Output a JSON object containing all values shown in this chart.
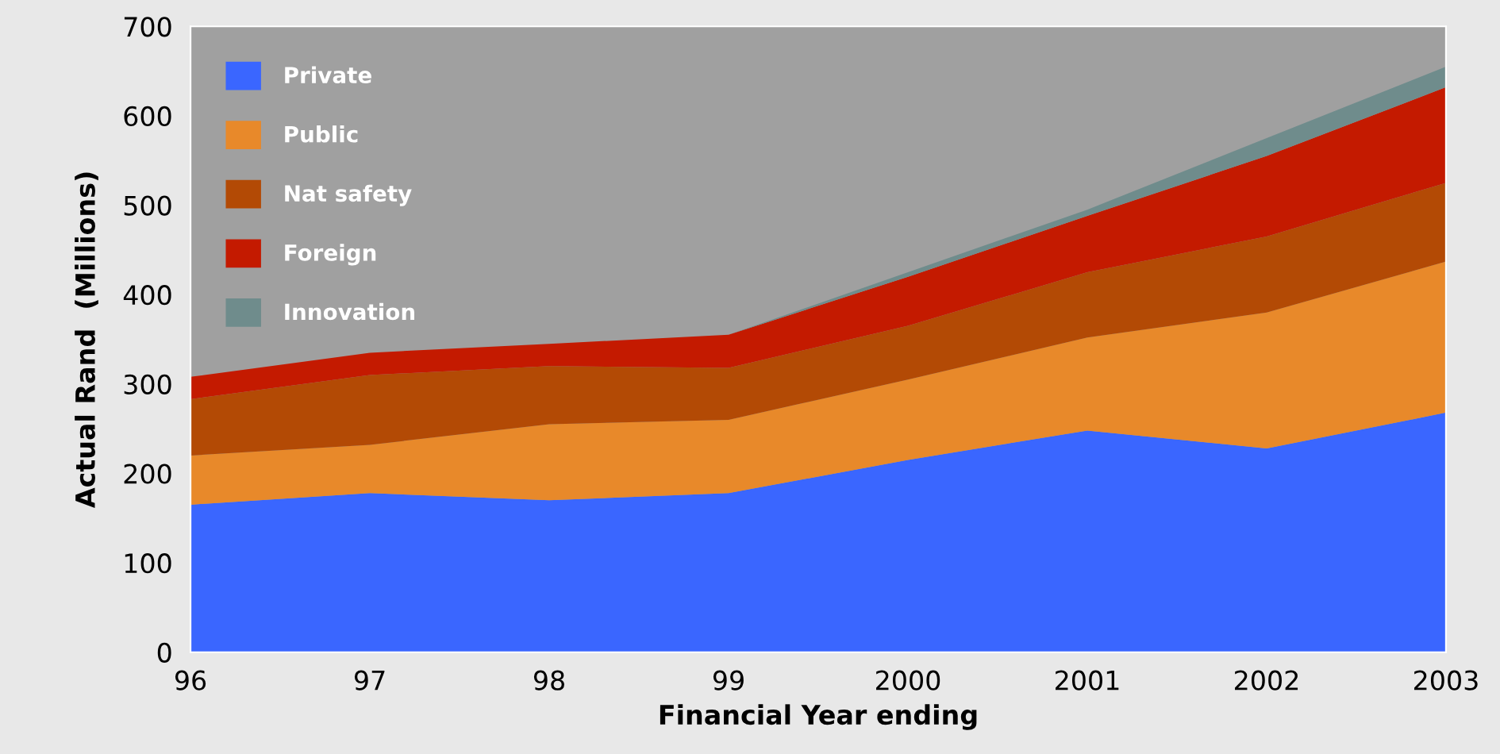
{
  "chart_data": {
    "type": "area",
    "stacked": true,
    "xlabel": "Financial Year ending",
    "ylabel": "Actual Rand  (Millions)",
    "categories": [
      "96",
      "97",
      "98",
      "99",
      "2000",
      "2001",
      "2002",
      "2003"
    ],
    "ylim": [
      0,
      700
    ],
    "yticks": [
      0,
      100,
      200,
      300,
      400,
      500,
      600,
      700
    ],
    "grid": false,
    "legend": "top left",
    "series": [
      {
        "name": "Private",
        "color": "#3a66ff",
        "values": [
          165,
          178,
          170,
          178,
          215,
          248,
          228,
          268
        ]
      },
      {
        "name": "Public",
        "color": "#e8892a",
        "values": [
          55,
          54,
          85,
          82,
          90,
          104,
          152,
          169
        ]
      },
      {
        "name": "Nat safety",
        "color": "#b34a05",
        "values": [
          63,
          78,
          65,
          58,
          60,
          73,
          85,
          88
        ]
      },
      {
        "name": "Foreign",
        "color": "#c41a00",
        "values": [
          25,
          25,
          25,
          37,
          55,
          63,
          90,
          107
        ]
      },
      {
        "name": "Innovation",
        "color": "#6f8c8c",
        "values": [
          0,
          0,
          0,
          0,
          5,
          7,
          20,
          23
        ]
      }
    ]
  }
}
